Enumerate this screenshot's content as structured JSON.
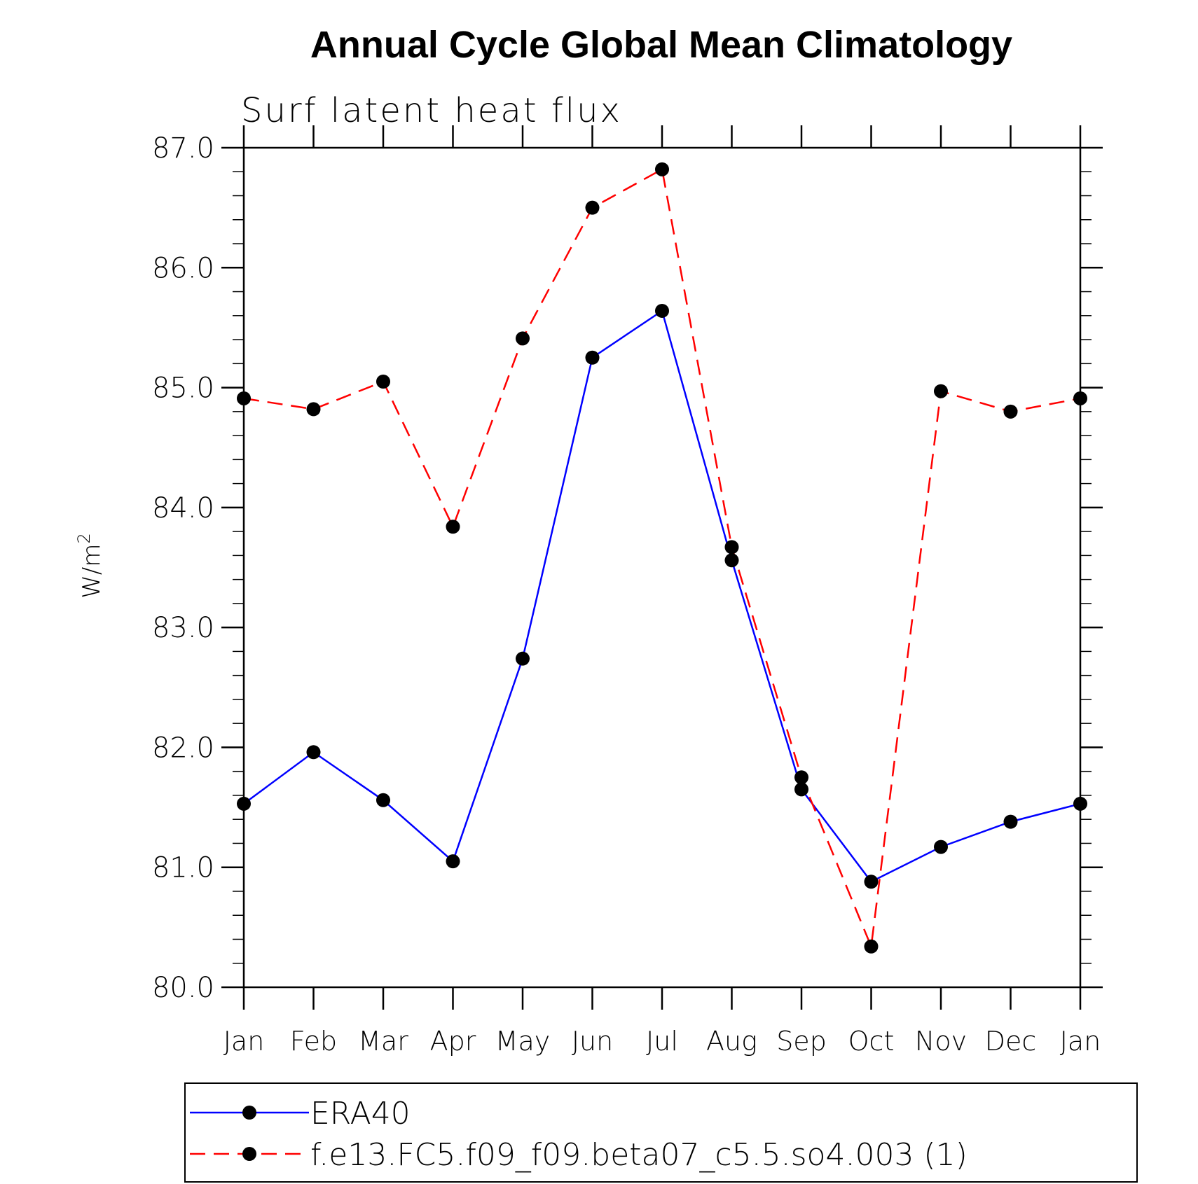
{
  "chart_data": {
    "type": "line",
    "title": "Annual Cycle Global Mean Climatology",
    "subtitle": "Surf latent heat flux",
    "ylabel_base": "W/m",
    "ylabel_sup": "2",
    "xlabel": "",
    "categories": [
      "Jan",
      "Feb",
      "Mar",
      "Apr",
      "May",
      "Jun",
      "Jul",
      "Aug",
      "Sep",
      "Oct",
      "Nov",
      "Dec",
      "Jan"
    ],
    "ylim": [
      80.0,
      87.0
    ],
    "yticks": [
      "80.0",
      "81.0",
      "82.0",
      "83.0",
      "84.0",
      "85.0",
      "86.0",
      "87.0"
    ],
    "grid": false,
    "legend_position": "bottom",
    "series": [
      {
        "name": "ERA40",
        "color": "#0000ff",
        "line_style": "solid",
        "values": [
          81.53,
          81.96,
          81.56,
          81.05,
          82.74,
          85.25,
          85.64,
          83.56,
          81.65,
          80.88,
          81.17,
          81.38,
          81.53
        ]
      },
      {
        "name": "f.e13.FC5.f09_f09.beta07_c5.5.so4.003 (1)",
        "color": "#ff0000",
        "line_style": "dashed",
        "values": [
          84.91,
          84.82,
          85.05,
          83.84,
          85.41,
          86.5,
          86.82,
          83.67,
          81.75,
          80.34,
          84.97,
          84.8,
          84.91
        ]
      }
    ],
    "marker": "filled-circle",
    "marker_color": "#000000"
  }
}
